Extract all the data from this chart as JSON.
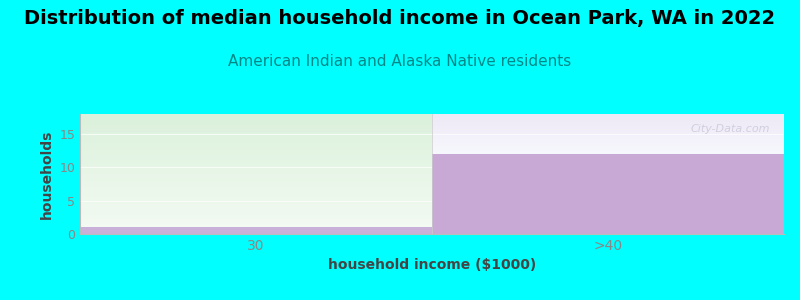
{
  "title": "Distribution of median household income in Ocean Park, WA in 2022",
  "subtitle": "American Indian and Alaska Native residents",
  "categories": [
    "30",
    ">40"
  ],
  "values": [
    1,
    12
  ],
  "left_bg_color_top": "#f0faf0",
  "left_bg_color_bottom": "#e0f5e0",
  "right_bg_color": "#f5f5ff",
  "bar_color_left": "#c8b8d8",
  "bar_color_right": "#c8a8d4",
  "xlabel": "household income ($1000)",
  "ylabel": "households",
  "ylim": [
    0,
    18
  ],
  "yticks": [
    0,
    5,
    10,
    15
  ],
  "background_color": "#00ffff",
  "plot_bg_top": "#f8faf8",
  "plot_bg_bottom": "#e8f5e8",
  "title_fontsize": 14,
  "subtitle_fontsize": 11,
  "subtitle_color": "#008888",
  "watermark": "City-Data.com",
  "tick_color": "#888888"
}
